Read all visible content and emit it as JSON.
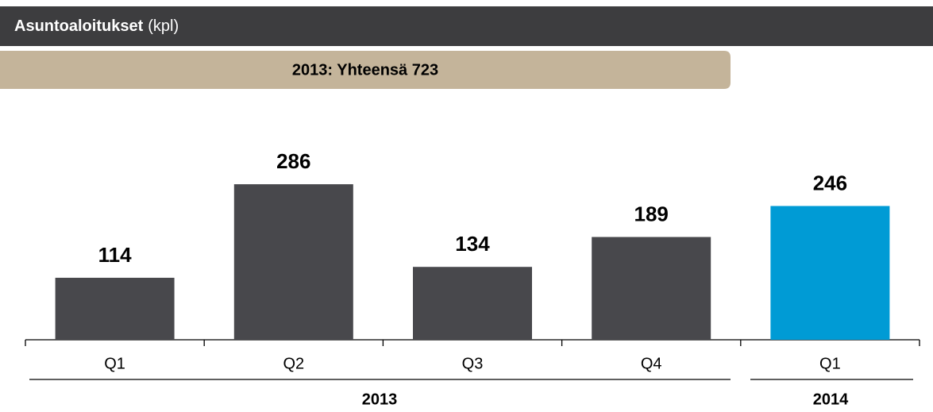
{
  "chart_data": {
    "type": "bar",
    "title": "Asuntoaloitukset",
    "unit": "(kpl)",
    "subtitle": "2013: Yhteensä 723",
    "categories": [
      "Q1",
      "Q2",
      "Q3",
      "Q4",
      "Q1"
    ],
    "groups": [
      "2013",
      "2014"
    ],
    "values": [
      114,
      286,
      134,
      189,
      246
    ],
    "colors": [
      "#48484c",
      "#48484c",
      "#48484c",
      "#48484c",
      "#009bd5"
    ]
  }
}
